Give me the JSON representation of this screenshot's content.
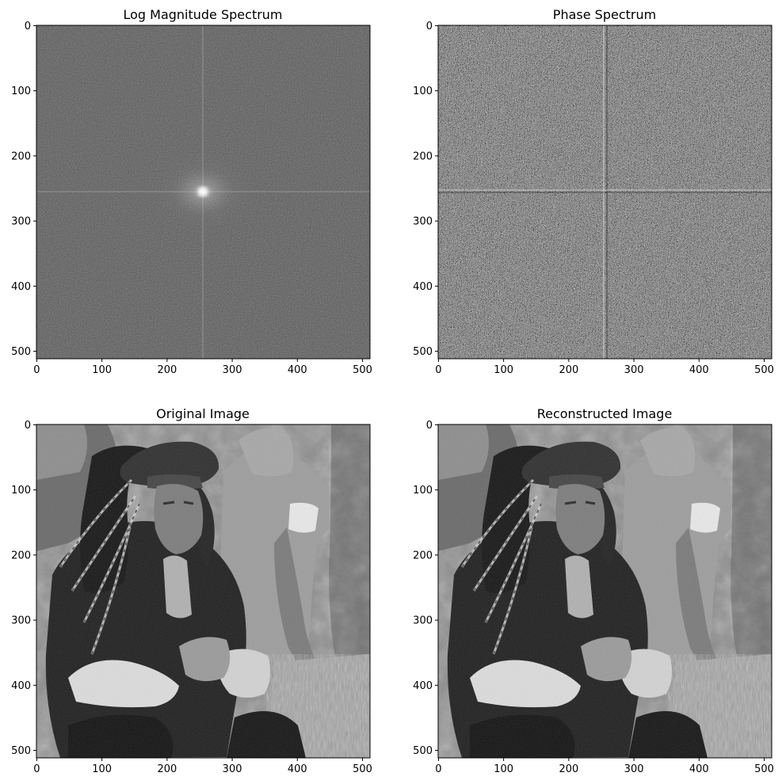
{
  "figure": {
    "background": "#ffffff",
    "colormap": "gray"
  },
  "chart_data": [
    {
      "type": "heatmap",
      "title": "Log Magnitude Spectrum",
      "content": "log-magnitude-spectrum",
      "xlim": [
        0,
        511
      ],
      "ylim": [
        511,
        0
      ],
      "xticks": [
        0,
        100,
        200,
        300,
        400,
        500
      ],
      "yticks": [
        0,
        100,
        200,
        300,
        400,
        500
      ],
      "xlabel": "",
      "ylabel": "",
      "grid": false
    },
    {
      "type": "heatmap",
      "title": "Phase Spectrum",
      "content": "phase-spectrum",
      "xlim": [
        0,
        511
      ],
      "ylim": [
        511,
        0
      ],
      "xticks": [
        0,
        100,
        200,
        300,
        400,
        500
      ],
      "yticks": [
        0,
        100,
        200,
        300,
        400,
        500
      ],
      "xlabel": "",
      "ylabel": "",
      "grid": false
    },
    {
      "type": "heatmap",
      "title": "Original Image",
      "content": "grayscale-photo",
      "xlim": [
        0,
        511
      ],
      "ylim": [
        511,
        0
      ],
      "xticks": [
        0,
        100,
        200,
        300,
        400,
        500
      ],
      "yticks": [
        0,
        100,
        200,
        300,
        400,
        500
      ],
      "xlabel": "",
      "ylabel": "",
      "grid": false
    },
    {
      "type": "heatmap",
      "title": "Reconstructed Image",
      "content": "grayscale-photo",
      "xlim": [
        0,
        511
      ],
      "ylim": [
        511,
        0
      ],
      "xticks": [
        0,
        100,
        200,
        300,
        400,
        500
      ],
      "yticks": [
        0,
        100,
        200,
        300,
        400,
        500
      ],
      "xlabel": "",
      "ylabel": "",
      "grid": false
    }
  ]
}
